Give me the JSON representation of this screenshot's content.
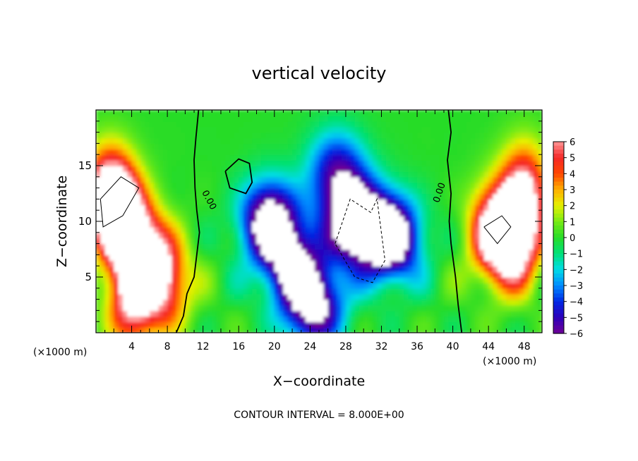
{
  "chart_data": {
    "type": "heatmap",
    "title": "vertical velocity",
    "xlabel": "X−coordinate",
    "ylabel": "Z−coordinate",
    "x_unit": "(×1000 m)",
    "xlim": [
      0,
      50
    ],
    "ylim": [
      0,
      20
    ],
    "x_ticks": [
      4,
      8,
      12,
      16,
      20,
      24,
      28,
      32,
      36,
      40,
      44,
      48
    ],
    "x_tick_labels": [
      "4",
      "8",
      "12",
      "16",
      "20",
      "24",
      "28",
      "32",
      "36",
      "40",
      "44",
      "48"
    ],
    "y_ticks": [
      5,
      10,
      15
    ],
    "y_tick_labels": [
      "5",
      "10",
      "15"
    ],
    "colorbar": {
      "min": -6,
      "max": 6,
      "levels": [
        6,
        5,
        4,
        3,
        2,
        1,
        0,
        -1,
        -2,
        -3,
        -4,
        -5,
        -6
      ],
      "labels": [
        "6",
        "5",
        "4",
        "3",
        "2",
        "1",
        "0",
        "−1",
        "−2",
        "−3",
        "−4",
        "−5",
        "−6"
      ]
    },
    "features": [
      {
        "kind": "updraft",
        "x": 3.0,
        "z": 10.0,
        "w": 9
      },
      {
        "kind": "updraft",
        "x": 5.5,
        "z": 6.5,
        "w": 8
      },
      {
        "kind": "updraft",
        "x": 8.0,
        "z": 4.5,
        "w": 5
      },
      {
        "kind": "updraft",
        "x": 1.5,
        "z": 12.5,
        "w": 8
      },
      {
        "kind": "updraft",
        "x": 4.0,
        "z": 3.0,
        "w": 6
      },
      {
        "kind": "updraft",
        "x": 47.0,
        "z": 8.5,
        "w": 9
      },
      {
        "kind": "updraft",
        "x": 44.5,
        "z": 9.0,
        "w": 7
      },
      {
        "kind": "updraft",
        "x": 48.0,
        "z": 13.0,
        "w": 6
      },
      {
        "kind": "downdraft",
        "x": 29.0,
        "z": 10.0,
        "w": -9
      },
      {
        "kind": "downdraft",
        "x": 33.0,
        "z": 8.5,
        "w": -9
      },
      {
        "kind": "downdraft",
        "x": 19.5,
        "z": 10.0,
        "w": -8
      },
      {
        "kind": "downdraft",
        "x": 22.0,
        "z": 6.0,
        "w": -6
      },
      {
        "kind": "downdraft",
        "x": 24.5,
        "z": 2.5,
        "w": -7
      },
      {
        "kind": "downdraft",
        "x": 27.0,
        "z": 14.5,
        "w": -5
      }
    ],
    "contour_labels": [
      "0.00",
      "0.00"
    ]
  },
  "footer": {
    "unit_left": "(×1000 m)",
    "unit_right": "(×1000 m)",
    "contour_interval": "CONTOUR INTERVAL = 8.000E+00"
  }
}
